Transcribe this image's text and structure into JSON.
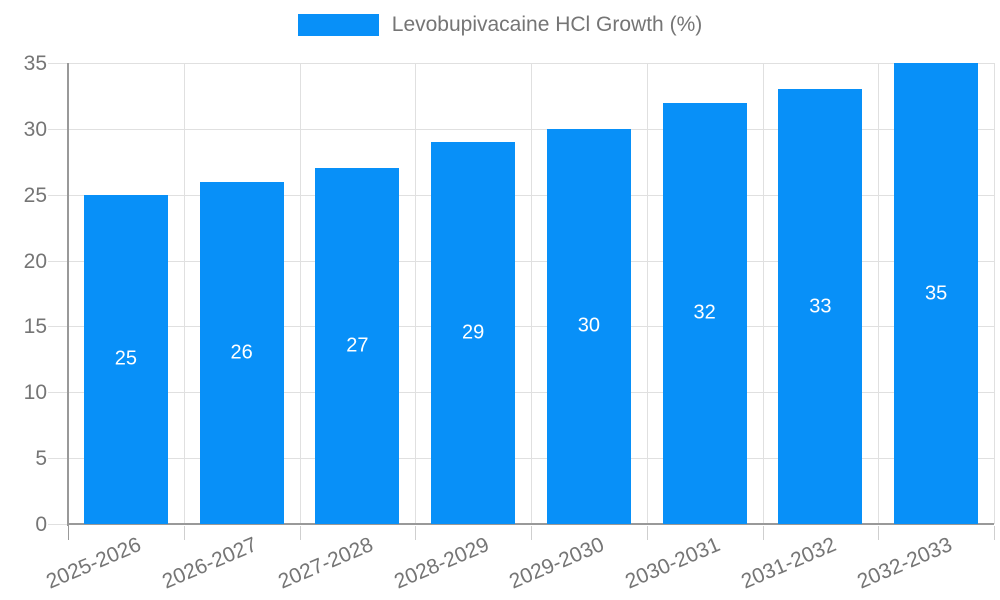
{
  "legend": {
    "label": "Levobupivacaine HCl Growth (%)"
  },
  "chart_data": {
    "type": "bar",
    "title": "",
    "xlabel": "",
    "ylabel": "",
    "categories": [
      "2025-2026",
      "2026-2027",
      "2027-2028",
      "2028-2029",
      "2029-2030",
      "2030-2031",
      "2031-2032",
      "2032-2033"
    ],
    "series": [
      {
        "name": "Levobupivacaine HCl Growth (%)",
        "values": [
          25,
          26,
          27,
          29,
          30,
          32,
          33,
          35
        ]
      }
    ],
    "value_labels": [
      "25",
      "26",
      "27",
      "29",
      "30",
      "32",
      "33",
      "35"
    ],
    "ylim": [
      0,
      35
    ],
    "yticks": [
      0,
      5,
      10,
      15,
      20,
      25,
      30,
      35
    ],
    "grid": true,
    "legend_position": "top-center",
    "colors": {
      "bar": "#0890f8",
      "value_label": "#ffffff",
      "grid": "#e0e0e0",
      "axis": "#999999",
      "minor_tick": "#cfcfcf",
      "tick_text": "#757575",
      "background": "#ffffff"
    }
  }
}
